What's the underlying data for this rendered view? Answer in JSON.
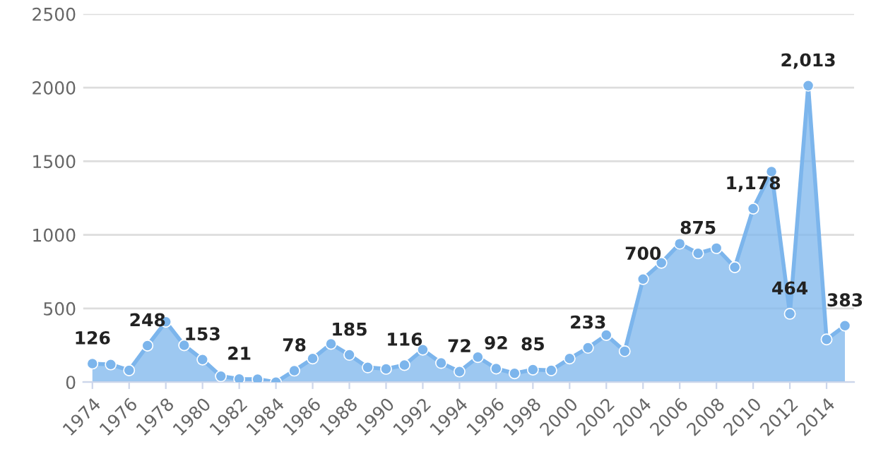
{
  "chart_data": {
    "type": "area",
    "x": [
      1974,
      1975,
      1976,
      1977,
      1978,
      1979,
      1980,
      1981,
      1982,
      1983,
      1984,
      1985,
      1986,
      1987,
      1988,
      1989,
      1990,
      1991,
      1992,
      1993,
      1994,
      1995,
      1996,
      1997,
      1998,
      1999,
      2000,
      2001,
      2002,
      2003,
      2004,
      2005,
      2006,
      2007,
      2008,
      2009,
      2010,
      2011,
      2012,
      2013,
      2014,
      2015
    ],
    "series": [
      {
        "color": "#7cb5ec",
        "values": [
          126,
          120,
          80,
          248,
          410,
          250,
          153,
          40,
          21,
          20,
          0,
          78,
          160,
          260,
          185,
          100,
          90,
          116,
          220,
          130,
          72,
          170,
          92,
          60,
          85,
          80,
          160,
          233,
          320,
          210,
          700,
          810,
          940,
          875,
          910,
          780,
          1178,
          1430,
          464,
          2013,
          290,
          383
        ],
        "value_labels": [
          "126",
          null,
          null,
          "248",
          null,
          null,
          "153",
          null,
          "21",
          null,
          null,
          "78",
          null,
          null,
          "185",
          null,
          null,
          "116",
          null,
          null,
          "72",
          null,
          "92",
          null,
          "85",
          null,
          null,
          "233",
          null,
          null,
          "700",
          null,
          null,
          "875",
          null,
          null,
          "1,178",
          null,
          "464",
          "2,013",
          null,
          "383"
        ]
      }
    ],
    "xlim": [
      1973.5,
      2015.5
    ],
    "xticks": [
      1974,
      1976,
      1978,
      1980,
      1982,
      1984,
      1986,
      1988,
      1990,
      1992,
      1994,
      1996,
      1998,
      2000,
      2002,
      2004,
      2006,
      2008,
      2010,
      2012,
      2014
    ],
    "ylim": [
      0,
      2500
    ],
    "yticks": [
      0,
      500,
      1000,
      1500,
      2000,
      2500
    ],
    "grid": "y",
    "marker": "circle",
    "line_style": "solid"
  }
}
